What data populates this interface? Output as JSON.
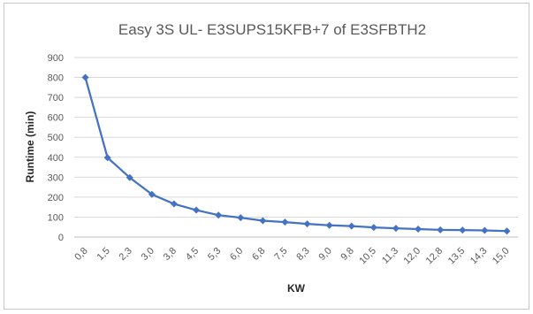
{
  "chart_data": {
    "type": "line",
    "title": "Easy 3S UL- E3SUPS15KFB+7 of E3SFBTH2",
    "xlabel": "KW",
    "ylabel": "Runtime (min)",
    "categories": [
      "0,8",
      "1,5",
      "2,3",
      "3,0",
      "3,8",
      "4,5",
      "5,3",
      "6,0",
      "6,8",
      "7,5",
      "8,3",
      "9,0",
      "9,8",
      "10,5",
      "11,3",
      "12,0",
      "12,8",
      "13,5",
      "14,3",
      "15,0"
    ],
    "series": [
      {
        "values": [
          800,
          398,
          298,
          214,
          166,
          135,
          110,
          97,
          82,
          75,
          66,
          59,
          55,
          48,
          44,
          40,
          36,
          35,
          33,
          30
        ],
        "color": "#4472c4",
        "marker": "diamond"
      }
    ],
    "ylim": [
      0,
      900
    ],
    "yticks": [
      0,
      100,
      200,
      300,
      400,
      500,
      600,
      700,
      800,
      900
    ],
    "grid": true,
    "legend": "none"
  }
}
